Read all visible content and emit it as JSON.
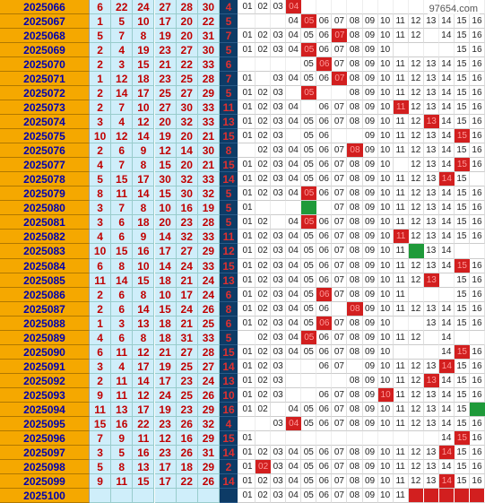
{
  "watermark": "97654.com",
  "chart_data": {
    "type": "table",
    "colors": {
      "issue_bg": "#f5a800",
      "issue_text": "#0000b0",
      "red_bg": "#cfeefa",
      "red_text": "#c00000",
      "blue_bg": "#0d3b66",
      "blue_text": "#e03030",
      "mark": "#d21f1f",
      "green_mark": "#1f9a3a"
    },
    "rows": [
      {
        "issue": "2025066",
        "red": [
          "6",
          "22",
          "24",
          "27",
          "28",
          "30"
        ],
        "blue": "4",
        "cells": [
          "01",
          "02",
          "03",
          "#",
          "",
          "",
          "",
          "",
          "",
          "",
          "",
          "",
          "",
          "",
          "",
          ""
        ]
      },
      {
        "issue": "2025067",
        "red": [
          "1",
          "5",
          "10",
          "17",
          "20",
          "22"
        ],
        "blue": "5",
        "cells": [
          "",
          "",
          "",
          "04",
          "#",
          "06",
          "07",
          "08",
          "09",
          "10",
          "11",
          "12",
          "13",
          "14",
          "15",
          "16"
        ]
      },
      {
        "issue": "2025068",
        "red": [
          "5",
          "7",
          "8",
          "19",
          "20",
          "31"
        ],
        "blue": "7",
        "cells": [
          "01",
          "02",
          "03",
          "04",
          "05",
          "06",
          "#",
          "08",
          "09",
          "10",
          "11",
          "12",
          "",
          "14",
          "15",
          "16"
        ]
      },
      {
        "issue": "2025069",
        "red": [
          "2",
          "4",
          "19",
          "23",
          "27",
          "30"
        ],
        "blue": "5",
        "cells": [
          "01",
          "02",
          "03",
          "04",
          "#",
          "06",
          "07",
          "08",
          "09",
          "10",
          "",
          "",
          "",
          "",
          "15",
          "16"
        ]
      },
      {
        "issue": "2025070",
        "red": [
          "2",
          "3",
          "15",
          "21",
          "22",
          "33"
        ],
        "blue": "6",
        "cells": [
          "",
          "",
          "",
          "",
          "05",
          "#",
          "07",
          "08",
          "09",
          "10",
          "11",
          "12",
          "13",
          "14",
          "15",
          "16"
        ]
      },
      {
        "issue": "2025071",
        "red": [
          "1",
          "12",
          "18",
          "23",
          "25",
          "28"
        ],
        "blue": "7",
        "cells": [
          "01",
          "",
          "03",
          "04",
          "05",
          "06",
          "#",
          "08",
          "09",
          "10",
          "11",
          "12",
          "13",
          "14",
          "15",
          "16"
        ]
      },
      {
        "issue": "2025072",
        "red": [
          "2",
          "14",
          "17",
          "25",
          "27",
          "29"
        ],
        "blue": "5",
        "cells": [
          "01",
          "02",
          "03",
          "",
          "#",
          "",
          "",
          "08",
          "09",
          "10",
          "11",
          "12",
          "13",
          "14",
          "15",
          "16"
        ]
      },
      {
        "issue": "2025073",
        "red": [
          "2",
          "7",
          "10",
          "27",
          "30",
          "33"
        ],
        "blue": "11",
        "cells": [
          "01",
          "02",
          "03",
          "04",
          "",
          "06",
          "07",
          "08",
          "09",
          "10",
          "#",
          "12",
          "13",
          "14",
          "15",
          "16"
        ]
      },
      {
        "issue": "2025074",
        "red": [
          "3",
          "4",
          "12",
          "20",
          "32",
          "33"
        ],
        "blue": "13",
        "cells": [
          "01",
          "02",
          "03",
          "04",
          "05",
          "06",
          "07",
          "08",
          "09",
          "10",
          "11",
          "12",
          "#",
          "14",
          "15",
          "16"
        ]
      },
      {
        "issue": "2025075",
        "red": [
          "10",
          "12",
          "14",
          "19",
          "20",
          "21"
        ],
        "blue": "15",
        "cells": [
          "01",
          "02",
          "03",
          "",
          "05",
          "06",
          "",
          "",
          "09",
          "10",
          "11",
          "12",
          "13",
          "14",
          "#",
          "16"
        ]
      },
      {
        "issue": "2025076",
        "red": [
          "2",
          "6",
          "9",
          "12",
          "14",
          "30"
        ],
        "blue": "8",
        "cells": [
          "",
          "02",
          "03",
          "04",
          "05",
          "06",
          "07",
          "#",
          "09",
          "10",
          "11",
          "12",
          "13",
          "14",
          "15",
          "16"
        ]
      },
      {
        "issue": "2025077",
        "red": [
          "4",
          "7",
          "8",
          "15",
          "20",
          "21"
        ],
        "blue": "15",
        "cells": [
          "01",
          "02",
          "03",
          "04",
          "05",
          "06",
          "07",
          "08",
          "09",
          "10",
          "",
          "12",
          "13",
          "14",
          "#",
          "16"
        ]
      },
      {
        "issue": "2025078",
        "red": [
          "5",
          "15",
          "17",
          "30",
          "32",
          "33"
        ],
        "blue": "14",
        "cells": [
          "01",
          "02",
          "03",
          "04",
          "05",
          "06",
          "07",
          "08",
          "09",
          "10",
          "11",
          "12",
          "13",
          "#",
          "15",
          ""
        ]
      },
      {
        "issue": "2025079",
        "red": [
          "8",
          "11",
          "14",
          "15",
          "30",
          "32"
        ],
        "blue": "5",
        "cells": [
          "01",
          "02",
          "03",
          "04",
          "#",
          "06",
          "07",
          "08",
          "09",
          "10",
          "11",
          "12",
          "13",
          "14",
          "15",
          "16"
        ]
      },
      {
        "issue": "2025080",
        "red": [
          "3",
          "7",
          "8",
          "10",
          "16",
          "19"
        ],
        "blue": "5",
        "cells": [
          "01",
          "",
          "",
          "",
          "G",
          "",
          "07",
          "08",
          "09",
          "10",
          "11",
          "12",
          "13",
          "14",
          "15",
          "16"
        ]
      },
      {
        "issue": "2025081",
        "red": [
          "3",
          "6",
          "18",
          "20",
          "23",
          "28"
        ],
        "blue": "5",
        "cells": [
          "01",
          "02",
          "",
          "04",
          "#",
          "06",
          "07",
          "08",
          "09",
          "10",
          "11",
          "12",
          "13",
          "14",
          "15",
          "16"
        ]
      },
      {
        "issue": "2025082",
        "red": [
          "4",
          "6",
          "9",
          "14",
          "32",
          "33"
        ],
        "blue": "11",
        "cells": [
          "01",
          "02",
          "03",
          "04",
          "05",
          "06",
          "07",
          "08",
          "09",
          "10",
          "#",
          "12",
          "13",
          "14",
          "15",
          "16"
        ]
      },
      {
        "issue": "2025083",
        "red": [
          "10",
          "15",
          "16",
          "17",
          "27",
          "29"
        ],
        "blue": "12",
        "cells": [
          "01",
          "02",
          "03",
          "04",
          "05",
          "06",
          "07",
          "08",
          "09",
          "10",
          "11",
          "G",
          "13",
          "14",
          "",
          ""
        ]
      },
      {
        "issue": "2025084",
        "red": [
          "6",
          "8",
          "10",
          "14",
          "24",
          "33"
        ],
        "blue": "15",
        "cells": [
          "01",
          "02",
          "03",
          "04",
          "05",
          "06",
          "07",
          "08",
          "09",
          "10",
          "11",
          "12",
          "13",
          "14",
          "#",
          "16"
        ]
      },
      {
        "issue": "2025085",
        "red": [
          "11",
          "14",
          "15",
          "18",
          "21",
          "24"
        ],
        "blue": "13",
        "cells": [
          "01",
          "02",
          "03",
          "04",
          "05",
          "06",
          "07",
          "08",
          "09",
          "10",
          "11",
          "12",
          "#",
          "",
          "15",
          "16"
        ]
      },
      {
        "issue": "2025086",
        "red": [
          "2",
          "6",
          "8",
          "10",
          "17",
          "24"
        ],
        "blue": "6",
        "cells": [
          "01",
          "02",
          "03",
          "04",
          "05",
          "#",
          "07",
          "08",
          "09",
          "10",
          "11",
          "",
          "",
          "",
          "15",
          "16"
        ]
      },
      {
        "issue": "2025087",
        "red": [
          "2",
          "6",
          "14",
          "15",
          "24",
          "26"
        ],
        "blue": "8",
        "cells": [
          "01",
          "02",
          "03",
          "04",
          "05",
          "06",
          "",
          "#",
          "09",
          "10",
          "11",
          "12",
          "13",
          "14",
          "15",
          "16"
        ]
      },
      {
        "issue": "2025088",
        "red": [
          "1",
          "3",
          "13",
          "18",
          "21",
          "25"
        ],
        "blue": "6",
        "cells": [
          "01",
          "02",
          "03",
          "04",
          "05",
          "#",
          "07",
          "08",
          "09",
          "10",
          "",
          "",
          "13",
          "14",
          "15",
          "16"
        ]
      },
      {
        "issue": "2025089",
        "red": [
          "4",
          "6",
          "8",
          "18",
          "31",
          "33"
        ],
        "blue": "5",
        "cells": [
          "",
          "02",
          "03",
          "04",
          "#",
          "06",
          "07",
          "08",
          "09",
          "10",
          "11",
          "12",
          "",
          "14",
          "",
          ""
        ]
      },
      {
        "issue": "2025090",
        "red": [
          "6",
          "11",
          "12",
          "21",
          "27",
          "28"
        ],
        "blue": "15",
        "cells": [
          "01",
          "02",
          "03",
          "04",
          "05",
          "06",
          "07",
          "08",
          "09",
          "10",
          "",
          "",
          "",
          "14",
          "#",
          "16"
        ]
      },
      {
        "issue": "2025091",
        "red": [
          "3",
          "4",
          "17",
          "19",
          "25",
          "27"
        ],
        "blue": "14",
        "cells": [
          "01",
          "02",
          "03",
          "",
          "",
          "06",
          "07",
          "",
          "09",
          "10",
          "11",
          "12",
          "13",
          "#",
          "15",
          "16"
        ]
      },
      {
        "issue": "2025092",
        "red": [
          "2",
          "11",
          "14",
          "17",
          "23",
          "24"
        ],
        "blue": "13",
        "cells": [
          "01",
          "02",
          "03",
          "",
          "",
          "",
          "",
          "08",
          "09",
          "10",
          "11",
          "12",
          "#",
          "14",
          "15",
          "16"
        ]
      },
      {
        "issue": "2025093",
        "red": [
          "9",
          "11",
          "12",
          "24",
          "25",
          "26"
        ],
        "blue": "10",
        "cells": [
          "01",
          "02",
          "03",
          "",
          "",
          "06",
          "07",
          "08",
          "09",
          "#",
          "11",
          "12",
          "13",
          "14",
          "15",
          "16"
        ]
      },
      {
        "issue": "2025094",
        "red": [
          "11",
          "13",
          "17",
          "19",
          "23",
          "29"
        ],
        "blue": "16",
        "cells": [
          "01",
          "02",
          "",
          "04",
          "05",
          "06",
          "07",
          "08",
          "09",
          "10",
          "11",
          "12",
          "13",
          "14",
          "15",
          "G"
        ]
      },
      {
        "issue": "2025095",
        "red": [
          "15",
          "16",
          "22",
          "23",
          "26",
          "32"
        ],
        "blue": "4",
        "cells": [
          "",
          "",
          "03",
          "#",
          "05",
          "06",
          "07",
          "08",
          "09",
          "10",
          "11",
          "12",
          "13",
          "14",
          "15",
          "16"
        ]
      },
      {
        "issue": "2025096",
        "red": [
          "7",
          "9",
          "11",
          "12",
          "16",
          "29"
        ],
        "blue": "15",
        "cells": [
          "01",
          "",
          "",
          "",
          "",
          "",
          "",
          "",
          "",
          "",
          "",
          "",
          "",
          "14",
          "#",
          "16"
        ]
      },
      {
        "issue": "2025097",
        "red": [
          "3",
          "5",
          "16",
          "23",
          "26",
          "31"
        ],
        "blue": "14",
        "cells": [
          "01",
          "02",
          "03",
          "04",
          "05",
          "06",
          "07",
          "08",
          "09",
          "10",
          "11",
          "12",
          "13",
          "#",
          "15",
          "16"
        ]
      },
      {
        "issue": "2025098",
        "red": [
          "5",
          "8",
          "13",
          "17",
          "18",
          "29"
        ],
        "blue": "2",
        "cells": [
          "01",
          "#",
          "03",
          "04",
          "05",
          "06",
          "07",
          "08",
          "09",
          "10",
          "11",
          "12",
          "13",
          "14",
          "15",
          "16"
        ]
      },
      {
        "issue": "2025099",
        "red": [
          "9",
          "11",
          "15",
          "17",
          "22",
          "26"
        ],
        "blue": "14",
        "cells": [
          "01",
          "02",
          "03",
          "04",
          "05",
          "06",
          "07",
          "08",
          "09",
          "10",
          "11",
          "12",
          "13",
          "#",
          "15",
          "16"
        ]
      },
      {
        "issue": "2025100",
        "red": [
          "",
          "",
          "",
          "",
          "",
          ""
        ],
        "blue": "",
        "cells": [
          "01",
          "02",
          "03",
          "04",
          "05",
          "06",
          "07",
          "08",
          "09",
          "10",
          "11",
          "M",
          "M",
          "M",
          "M",
          "M"
        ]
      }
    ]
  }
}
